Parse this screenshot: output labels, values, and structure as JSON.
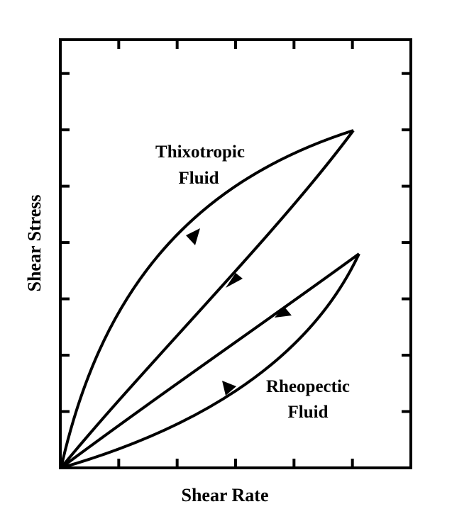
{
  "diagram": {
    "x_axis_label": "Shear Rate",
    "y_axis_label": "Shear Stress",
    "x_ticks": 6,
    "y_ticks": 7,
    "curves": [
      {
        "name_line1": "Thixotropic",
        "name_line2": "Fluid",
        "up_curve": "upper (concave)",
        "down_curve": "lower (nearly straight)",
        "loop_direction": "up along upper curve, down along lower curve"
      },
      {
        "name_line1": "Rheopectic",
        "name_line2": "Fluid",
        "up_curve": "lower (convex)",
        "down_curve": "upper (nearly straight)",
        "loop_direction": "up along lower curve, down along upper curve"
      }
    ],
    "colors": {
      "line": "#000000",
      "background": "#ffffff"
    }
  }
}
